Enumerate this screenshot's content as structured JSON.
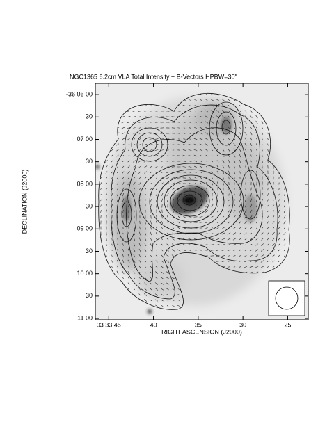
{
  "chart_data": {
    "type": "contour-map",
    "title": "NGC1365   6.2cm   VLA   Total Intensity + B-Vectors   HPBW=30\"",
    "xlabel": "RIGHT ASCENSION (J2000)",
    "ylabel": "DECLINATION (J2000)",
    "xlim": [
      46.5,
      22.7
    ],
    "xticks": [
      {
        "value": 45,
        "label": "03 33 45"
      },
      40,
      35,
      30,
      25
    ],
    "ylim": [
      11.03,
      5.75
    ],
    "yticks": [
      {
        "value": 6,
        "label": "-36 06 00"
      },
      {
        "value": 6.5,
        "label": "30"
      },
      {
        "value": 7,
        "label": "07 00"
      },
      {
        "value": 7.5,
        "label": "30"
      },
      {
        "value": 8,
        "label": "08 00"
      },
      {
        "value": 8.5,
        "label": "30"
      },
      {
        "value": 9,
        "label": "09 00"
      },
      {
        "value": 9.5,
        "label": "30"
      },
      {
        "value": 10,
        "label": "10 00"
      },
      {
        "value": 10.5,
        "label": "30"
      },
      {
        "value": 11,
        "label": "11 00"
      }
    ]
  }
}
